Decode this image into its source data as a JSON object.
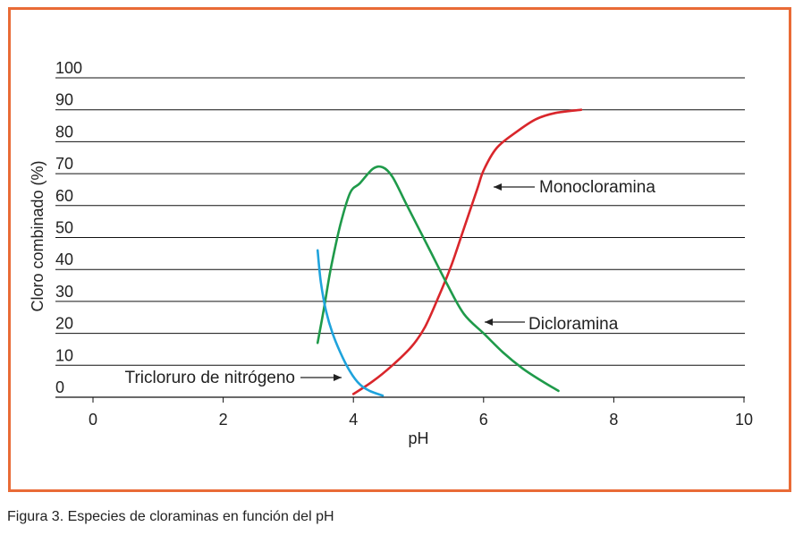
{
  "caption": "Figura 3. Especies de cloraminas en función del pH",
  "colors": {
    "frame": "#e96b36",
    "monocloramina": "#d9262b",
    "dicloramina": "#1f9a4a",
    "tricloruro": "#1fa3dc",
    "gridline": "#111111"
  },
  "chart_data": {
    "type": "line",
    "xlabel": "pH",
    "ylabel": "Cloro combinado (%)",
    "xlim": [
      0,
      10
    ],
    "ylim": [
      0,
      100
    ],
    "x_ticks": [
      "0",
      "2",
      "4",
      "6",
      "8",
      "10"
    ],
    "y_ticks": [
      "0",
      "10",
      "20",
      "30",
      "40",
      "50",
      "60",
      "70",
      "80",
      "90",
      "100"
    ],
    "grid": "horizontal",
    "series": [
      {
        "name": "Monocloramina",
        "color": "#d9262b",
        "x": [
          4.0,
          4.3,
          4.6,
          4.9,
          5.1,
          5.3,
          5.5,
          5.7,
          5.9,
          6.0,
          6.2,
          6.5,
          6.8,
          7.1,
          7.5
        ],
        "y": [
          1,
          5,
          10,
          16,
          22,
          31,
          41,
          53,
          65,
          71,
          78,
          83,
          87,
          89,
          90
        ]
      },
      {
        "name": "Dicloramina",
        "color": "#1f9a4a",
        "x": [
          3.45,
          3.55,
          3.65,
          3.8,
          3.95,
          4.1,
          4.3,
          4.45,
          4.6,
          4.8,
          5.0,
          5.2,
          5.45,
          5.7,
          6.0,
          6.3,
          6.6,
          6.9,
          7.15
        ],
        "y": [
          17,
          28,
          40,
          54,
          64,
          67,
          71.5,
          72,
          69,
          61,
          53,
          45,
          35,
          26,
          20,
          14,
          9,
          5,
          2
        ]
      },
      {
        "name": "Tricloruro de nitrógeno",
        "color": "#1fa3dc",
        "x": [
          3.45,
          3.5,
          3.58,
          3.68,
          3.8,
          3.95,
          4.1,
          4.25,
          4.45
        ],
        "y": [
          46,
          36,
          27,
          20,
          14,
          8,
          4,
          2,
          0.5
        ]
      }
    ],
    "annotations": [
      {
        "label": "Monocloramina",
        "series": 0
      },
      {
        "label": "Dicloramina",
        "series": 1
      },
      {
        "label": "Tricloruro de nitrógeno",
        "series": 2
      }
    ]
  }
}
